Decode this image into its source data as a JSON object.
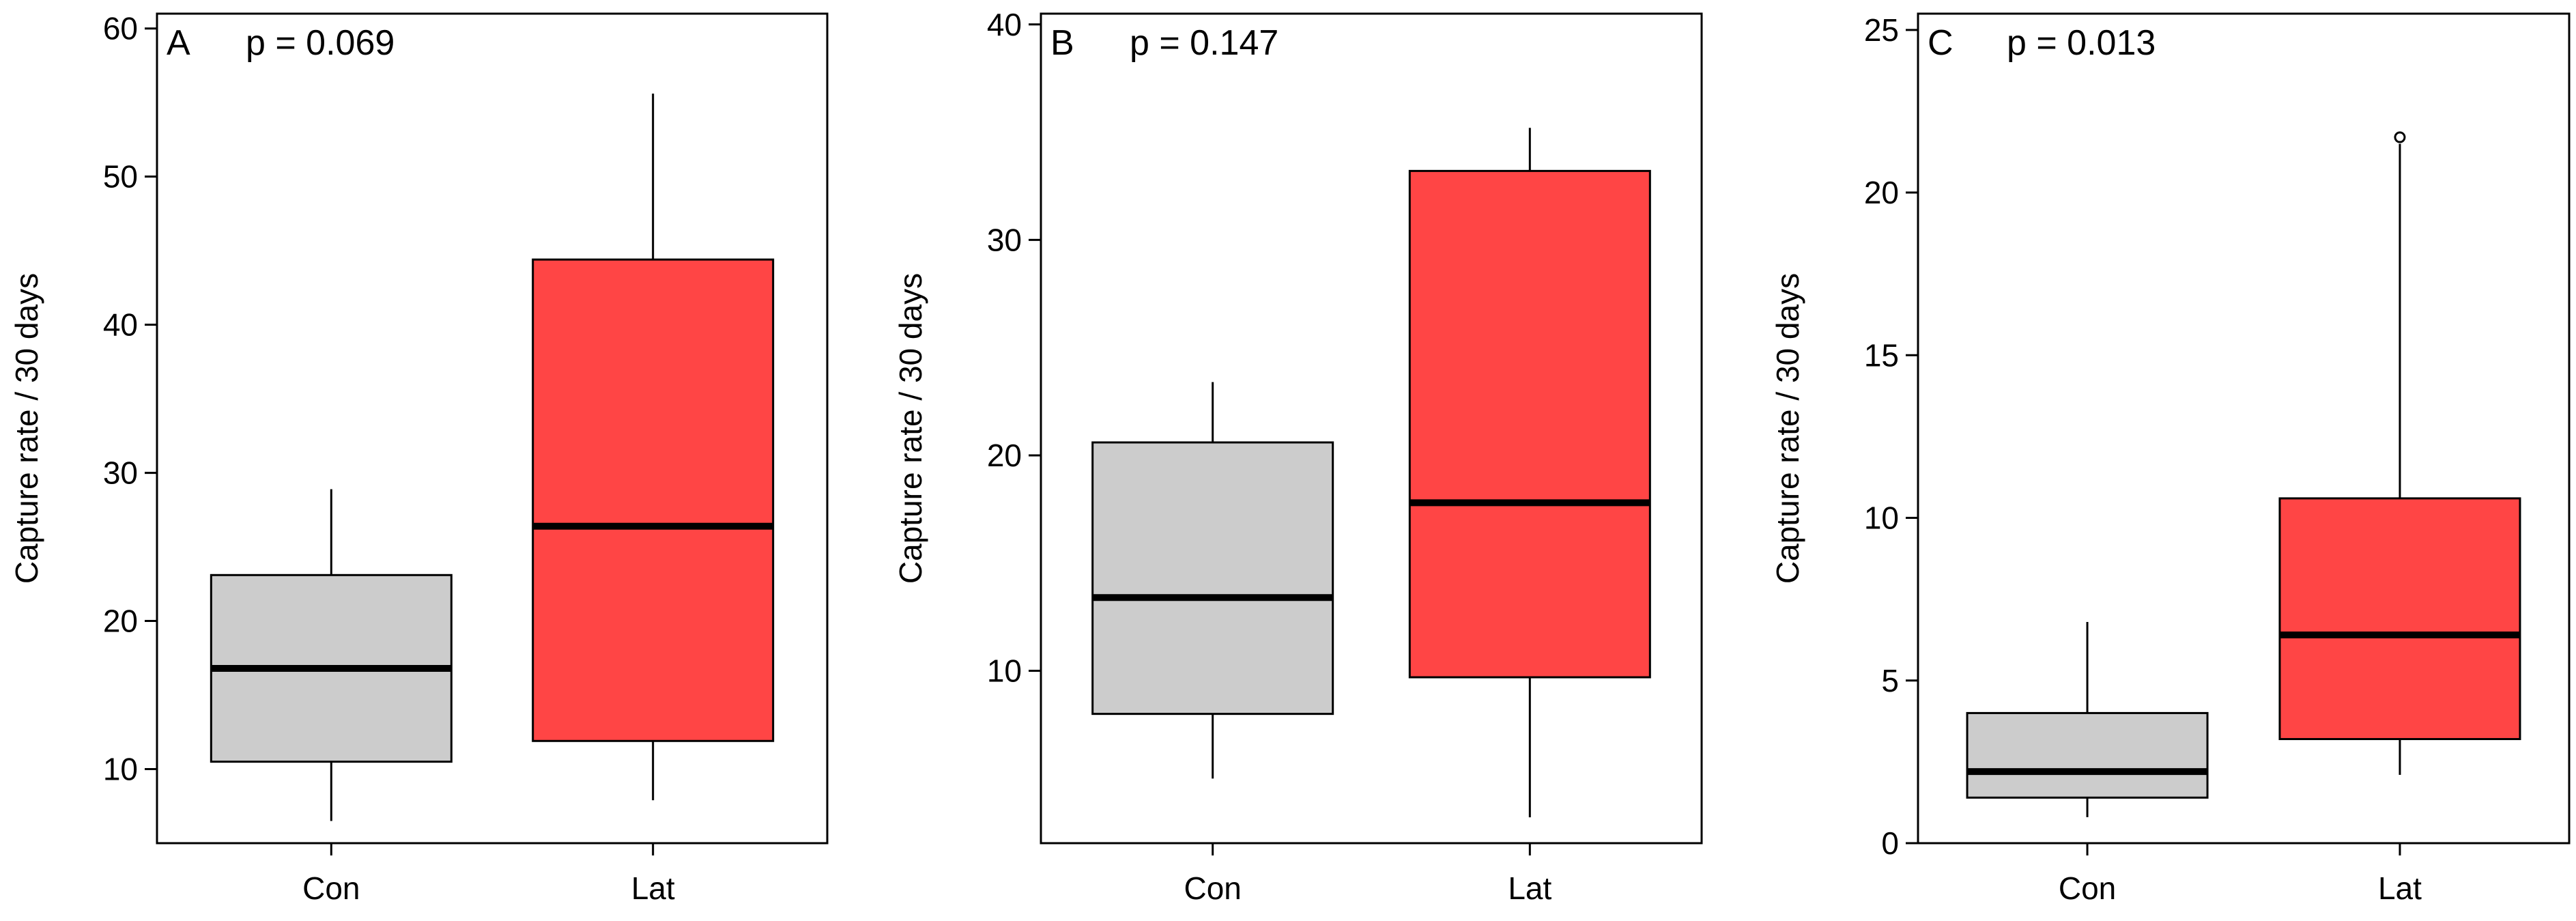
{
  "colors": {
    "con_fill": "#cccccc",
    "lat_fill": "#ff4545",
    "stroke": "#000000",
    "background": "#ffffff"
  },
  "chart_data": [
    {
      "type": "box",
      "panel_label": "A",
      "annotation": "p = 0.069",
      "ylabel": "Capture rate / 30 days",
      "ylim": [
        5,
        61
      ],
      "yticks": [
        10,
        20,
        30,
        40,
        50,
        60
      ],
      "ytick_labels": [
        "10",
        "20",
        "30",
        "40",
        "50",
        "60"
      ],
      "categories": [
        "Con",
        "Lat"
      ],
      "boxes": [
        {
          "category": "Con",
          "whisker_low": 6.5,
          "q1": 10.5,
          "median": 16.8,
          "q3": 23.1,
          "whisker_high": 28.9,
          "outliers": []
        },
        {
          "category": "Lat",
          "whisker_low": 7.9,
          "q1": 11.9,
          "median": 26.4,
          "q3": 44.4,
          "whisker_high": 55.6,
          "outliers": []
        }
      ]
    },
    {
      "type": "box",
      "panel_label": "B",
      "annotation": "p = 0.147",
      "ylabel": "Capture rate / 30 days",
      "ylim": [
        2.0,
        40.5
      ],
      "yticks": [
        10,
        20,
        30,
        40
      ],
      "ytick_labels": [
        "10",
        "20",
        "30",
        "40"
      ],
      "categories": [
        "Con",
        "Lat"
      ],
      "boxes": [
        {
          "category": "Con",
          "whisker_low": 5.0,
          "q1": 8.0,
          "median": 13.4,
          "q3": 20.6,
          "whisker_high": 23.4,
          "outliers": []
        },
        {
          "category": "Lat",
          "whisker_low": 3.2,
          "q1": 9.7,
          "median": 17.8,
          "q3": 33.2,
          "whisker_high": 35.2,
          "outliers": []
        }
      ]
    },
    {
      "type": "box",
      "panel_label": "C",
      "annotation": "p = 0.013",
      "ylabel": "Capture rate / 30 days",
      "ylim": [
        0,
        25.5
      ],
      "yticks": [
        0,
        5,
        10,
        15,
        20,
        25
      ],
      "ytick_labels": [
        "0",
        "5",
        "10",
        "15",
        "20",
        "25"
      ],
      "categories": [
        "Con",
        "Lat"
      ],
      "boxes": [
        {
          "category": "Con",
          "whisker_low": 0.8,
          "q1": 1.4,
          "median": 2.2,
          "q3": 4.0,
          "whisker_high": 6.8,
          "outliers": []
        },
        {
          "category": "Lat",
          "whisker_low": 2.1,
          "q1": 3.2,
          "median": 6.4,
          "q3": 10.6,
          "whisker_high": 21.5,
          "outliers": [
            21.7
          ]
        }
      ]
    }
  ]
}
